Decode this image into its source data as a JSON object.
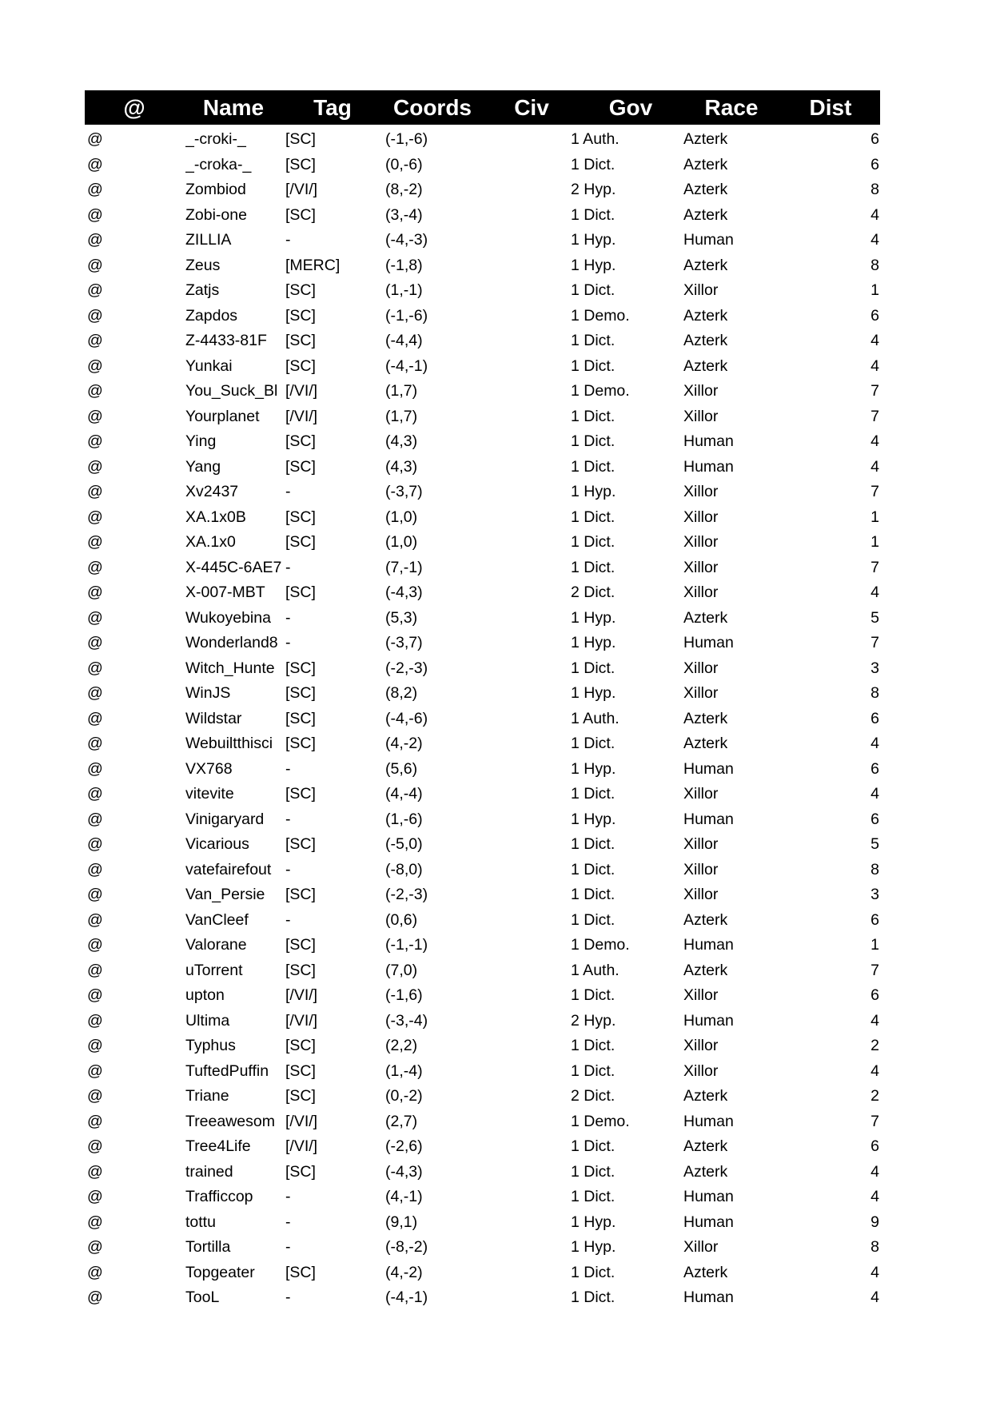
{
  "header": {
    "at": "@",
    "name": "Name",
    "tag": "Tag",
    "coords": "Coords",
    "civ": "Civ",
    "gov": "Gov",
    "race": "Race",
    "dist": "Dist"
  },
  "rows": [
    [
      "@",
      "_-croki-_",
      "[SC]",
      "(-1,-6)",
      "1 Auth.",
      "Azterk",
      "6"
    ],
    [
      "@",
      "_-croka-_",
      "[SC]",
      "(0,-6)",
      "1 Dict.",
      "Azterk",
      "6"
    ],
    [
      "@",
      "Zombiod",
      "[/VI/]",
      "(8,-2)",
      "2 Hyp.",
      "Azterk",
      "8"
    ],
    [
      "@",
      "Zobi-one",
      "[SC]",
      "(3,-4)",
      "1 Dict.",
      "Azterk",
      "4"
    ],
    [
      "@",
      "ZILLIA",
      "-",
      "(-4,-3)",
      "1 Hyp.",
      "Human",
      "4"
    ],
    [
      "@",
      "Zeus",
      "[MERC]",
      "(-1,8)",
      "1 Hyp.",
      "Azterk",
      "8"
    ],
    [
      "@",
      "Zatjs",
      "[SC]",
      "(1,-1)",
      "1 Dict.",
      "Xillor",
      "1"
    ],
    [
      "@",
      "Zapdos",
      "[SC]",
      "(-1,-6)",
      "1 Demo.",
      "Azterk",
      "6"
    ],
    [
      "@",
      "Z-4433-81F",
      "[SC]",
      "(-4,4)",
      "1 Dict.",
      "Azterk",
      "4"
    ],
    [
      "@",
      "Yunkai",
      "[SC]",
      "(-4,-1)",
      "1 Dict.",
      "Azterk",
      "4"
    ],
    [
      "@",
      "You_Suck_Bl",
      "[/VI/]",
      "(1,7)",
      "1 Demo.",
      "Xillor",
      "7"
    ],
    [
      "@",
      "Yourplanet",
      "[/VI/]",
      "(1,7)",
      "1 Dict.",
      "Xillor",
      "7"
    ],
    [
      "@",
      "Ying",
      "[SC]",
      "(4,3)",
      "1 Dict.",
      "Human",
      "4"
    ],
    [
      "@",
      "Yang",
      "[SC]",
      "(4,3)",
      "1 Dict.",
      "Human",
      "4"
    ],
    [
      "@",
      "Xv2437",
      "-",
      "(-3,7)",
      "1 Hyp.",
      "Xillor",
      "7"
    ],
    [
      "@",
      "XA.1x0B",
      "[SC]",
      "(1,0)",
      "1 Dict.",
      "Xillor",
      "1"
    ],
    [
      "@",
      "XA.1x0",
      "[SC]",
      "(1,0)",
      "1 Dict.",
      "Xillor",
      "1"
    ],
    [
      "@",
      "X-445C-6AE7",
      "-",
      "(7,-1)",
      "1 Dict.",
      "Xillor",
      "7"
    ],
    [
      "@",
      "X-007-MBT",
      "[SC]",
      "(-4,3)",
      "2 Dict.",
      "Xillor",
      "4"
    ],
    [
      "@",
      "Wukoyebina",
      "-",
      "(5,3)",
      "1 Hyp.",
      "Azterk",
      "5"
    ],
    [
      "@",
      "Wonderland8",
      "-",
      "(-3,7)",
      "1 Hyp.",
      "Human",
      "7"
    ],
    [
      "@",
      "Witch_Hunte",
      "[SC]",
      "(-2,-3)",
      "1 Dict.",
      "Xillor",
      "3"
    ],
    [
      "@",
      "WinJS",
      "[SC]",
      "(8,2)",
      "1 Hyp.",
      "Xillor",
      "8"
    ],
    [
      "@",
      "Wildstar",
      "[SC]",
      "(-4,-6)",
      "1 Auth.",
      "Azterk",
      "6"
    ],
    [
      "@",
      "Webuiltthisci",
      "[SC]",
      "(4,-2)",
      "1 Dict.",
      "Azterk",
      "4"
    ],
    [
      "@",
      "VX768",
      "-",
      "(5,6)",
      "1 Hyp.",
      "Human",
      "6"
    ],
    [
      "@",
      "vitevite",
      "[SC]",
      "(4,-4)",
      "1 Dict.",
      "Xillor",
      "4"
    ],
    [
      "@",
      "Vinigaryard",
      "-",
      "(1,-6)",
      "1 Hyp.",
      "Human",
      "6"
    ],
    [
      "@",
      "Vicarious",
      "[SC]",
      "(-5,0)",
      "1 Dict.",
      "Xillor",
      "5"
    ],
    [
      "@",
      "vatefairefout",
      "-",
      "(-8,0)",
      "1 Dict.",
      "Xillor",
      "8"
    ],
    [
      "@",
      "Van_Persie",
      "[SC]",
      "(-2,-3)",
      "1 Dict.",
      "Xillor",
      "3"
    ],
    [
      "@",
      "VanCleef",
      "-",
      "(0,6)",
      "1 Dict.",
      "Azterk",
      "6"
    ],
    [
      "@",
      "Valorane",
      "[SC]",
      "(-1,-1)",
      "1 Demo.",
      "Human",
      "1"
    ],
    [
      "@",
      "uTorrent",
      "[SC]",
      "(7,0)",
      "1 Auth.",
      "Azterk",
      "7"
    ],
    [
      "@",
      "upton",
      "[/VI/]",
      "(-1,6)",
      "1 Dict.",
      "Xillor",
      "6"
    ],
    [
      "@",
      "Ultima",
      "[/VI/]",
      "(-3,-4)",
      "2 Hyp.",
      "Human",
      "4"
    ],
    [
      "@",
      "Typhus",
      "[SC]",
      "(2,2)",
      "1 Dict.",
      "Xillor",
      "2"
    ],
    [
      "@",
      "TuftedPuffin",
      "[SC]",
      "(1,-4)",
      "1 Dict.",
      "Xillor",
      "4"
    ],
    [
      "@",
      "Triane",
      "[SC]",
      "(0,-2)",
      "2 Dict.",
      "Azterk",
      "2"
    ],
    [
      "@",
      "Treeawesom",
      "[/VI/]",
      "(2,7)",
      "1 Demo.",
      "Human",
      "7"
    ],
    [
      "@",
      "Tree4Life",
      "[/VI/]",
      "(-2,6)",
      "1 Dict.",
      "Azterk",
      "6"
    ],
    [
      "@",
      "trained",
      "[SC]",
      "(-4,3)",
      "1 Dict.",
      "Azterk",
      "4"
    ],
    [
      "@",
      "Trafficcop",
      "-",
      "(4,-1)",
      "1 Dict.",
      "Human",
      "4"
    ],
    [
      "@",
      "tottu",
      "-",
      "(9,1)",
      "1 Hyp.",
      "Human",
      "9"
    ],
    [
      "@",
      "Tortilla",
      "-",
      "(-8,-2)",
      "1 Hyp.",
      "Xillor",
      "8"
    ],
    [
      "@",
      "Topgeater",
      "[SC]",
      "(4,-2)",
      "1 Dict.",
      "Azterk",
      "4"
    ],
    [
      "@",
      "TooL",
      "-",
      "(-4,-1)",
      "1 Dict.",
      "Human",
      "4"
    ]
  ]
}
